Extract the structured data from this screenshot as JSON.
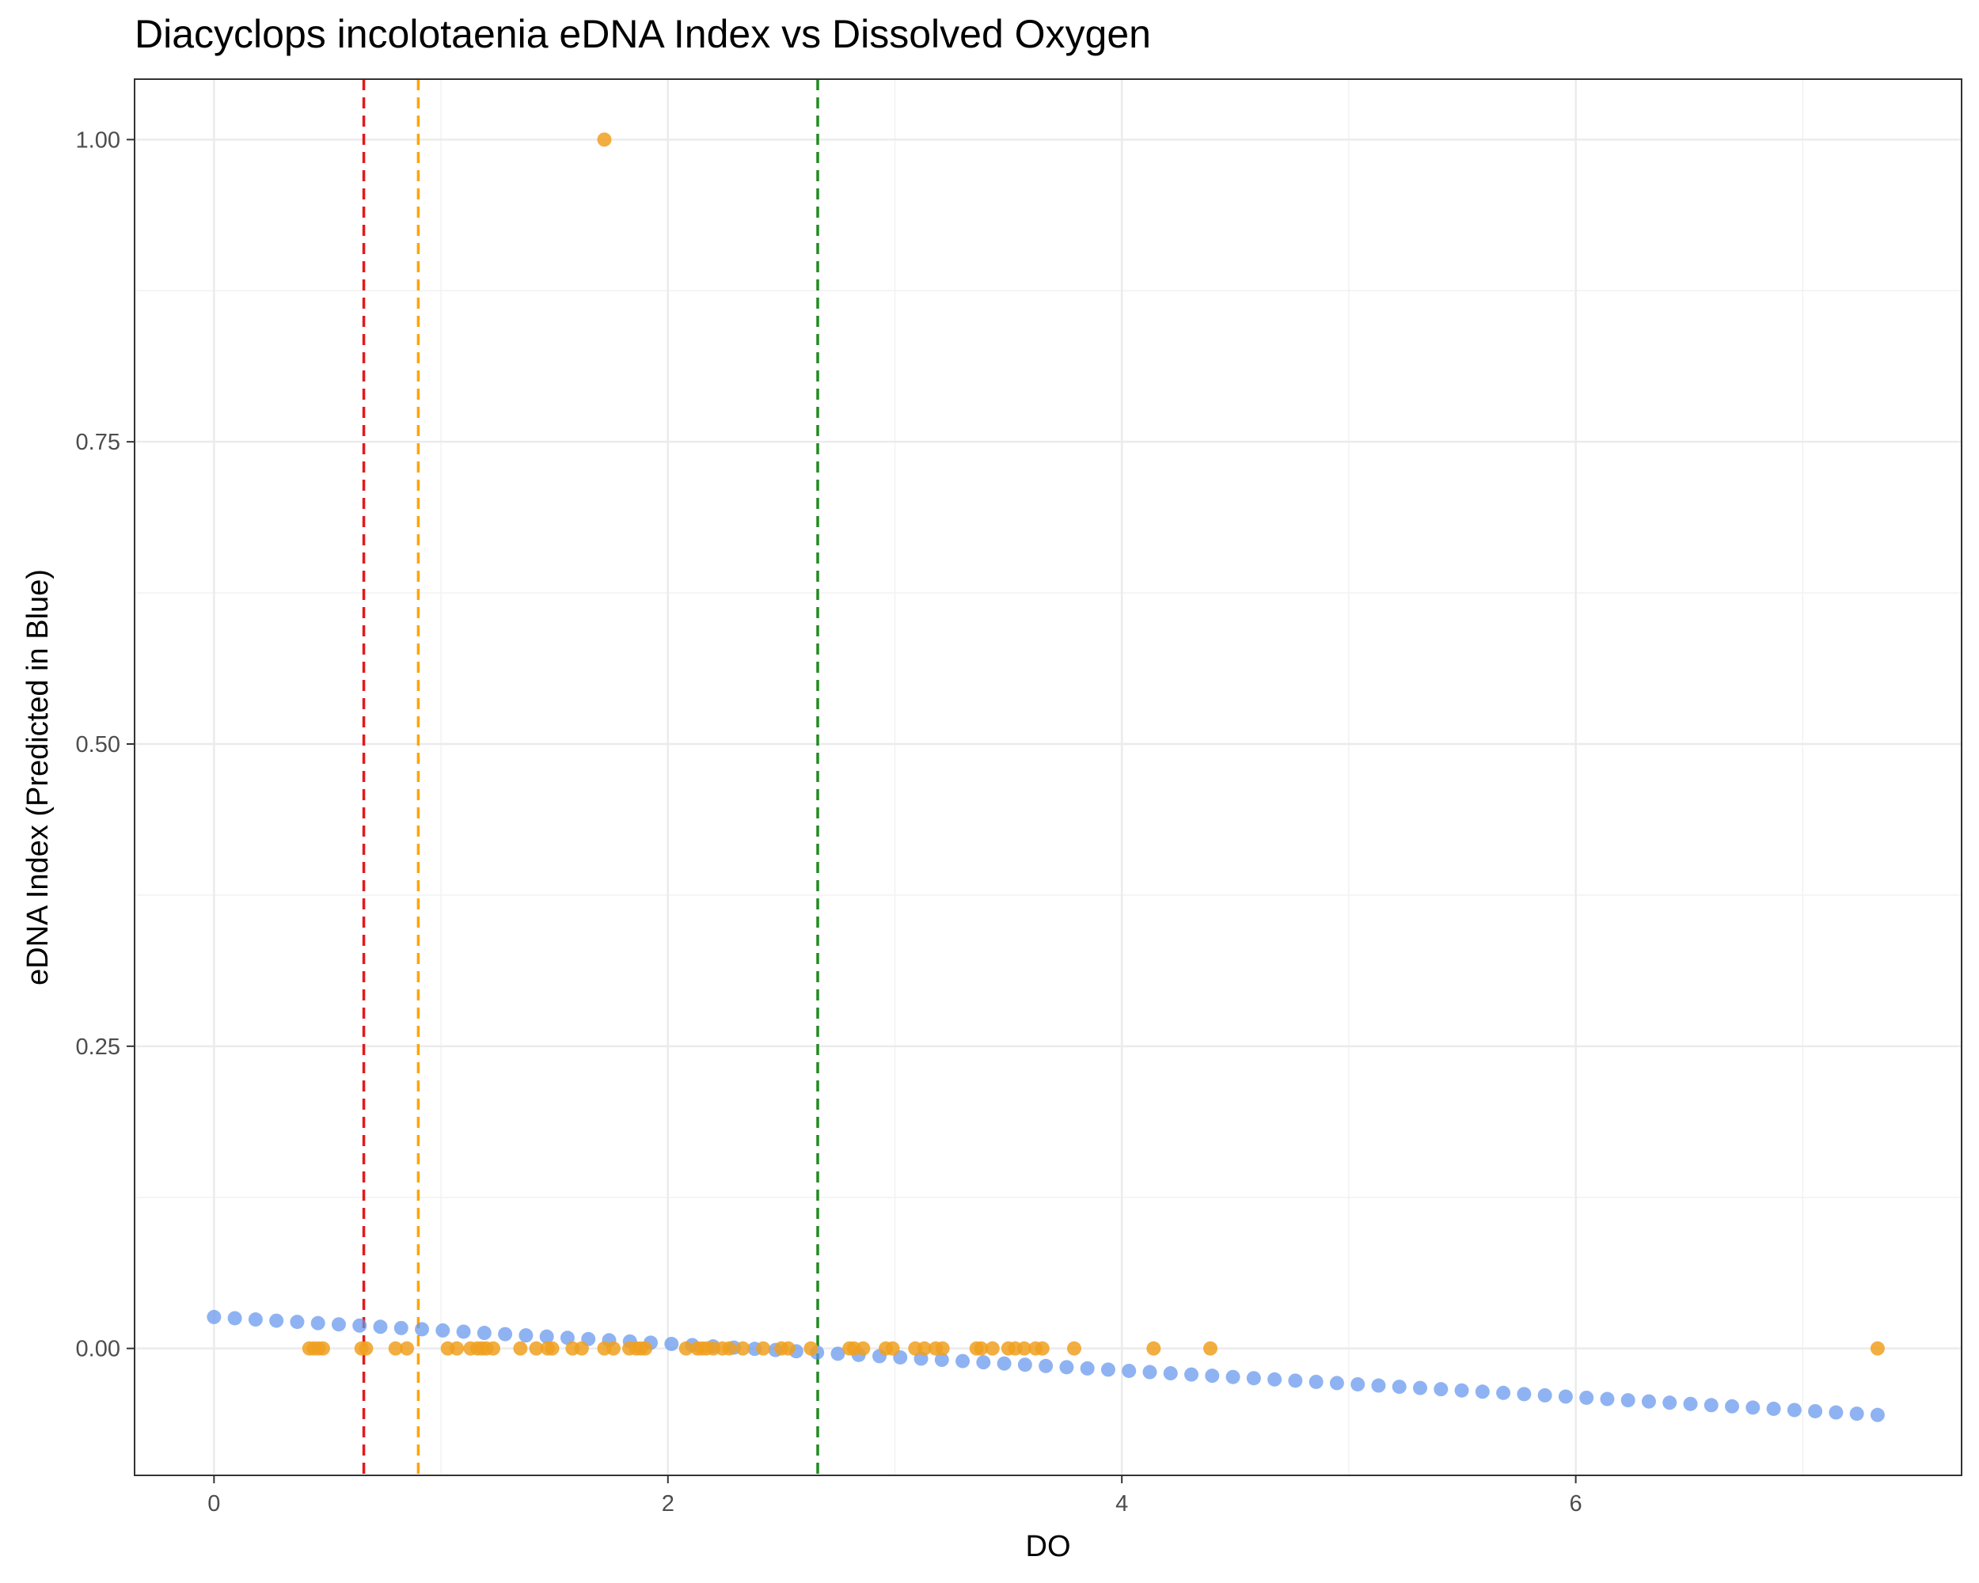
{
  "chart_data": {
    "type": "scatter",
    "title": "Diacyclops incolotaenia eDNA Index vs Dissolved Oxygen",
    "xlabel": "DO",
    "ylabel": "eDNA Index (Predicted in Blue)",
    "xlim": [
      -0.35,
      7.7
    ],
    "ylim": [
      -0.105,
      1.05
    ],
    "x_ticks": [
      0,
      2,
      4,
      6
    ],
    "x_tick_labels": [
      "0",
      "2",
      "4",
      "6"
    ],
    "y_ticks": [
      0.0,
      0.25,
      0.5,
      0.75,
      1.0
    ],
    "y_tick_labels": [
      "0.00",
      "0.25",
      "0.50",
      "0.75",
      "1.00"
    ],
    "grid": true,
    "colors": {
      "predicted": "#6495ED",
      "observed": "#F0A020",
      "red_line": "#E41A1C",
      "orange_line": "#FFA500",
      "green_line": "#228B22"
    },
    "vlines": [
      {
        "x": 0.66,
        "color": "#E41A1C",
        "style": "dashed"
      },
      {
        "x": 0.9,
        "color": "#FFA500",
        "style": "dashed"
      },
      {
        "x": 2.66,
        "color": "#228B22",
        "style": "dashed"
      }
    ],
    "series": [
      {
        "role": "predicted",
        "x_start": 0.0,
        "x_end": 7.33,
        "n": 81,
        "y_start": 0.026,
        "y_end": -0.055
      },
      {
        "role": "observed",
        "x": [
          0.42,
          0.44,
          0.46,
          0.48,
          0.65,
          0.67,
          0.8,
          0.85,
          1.03,
          1.07,
          1.13,
          1.16,
          1.18,
          1.2,
          1.23,
          1.35,
          1.42,
          1.47,
          1.49,
          1.58,
          1.62,
          1.72,
          1.76,
          1.83,
          1.86,
          1.88,
          1.9,
          2.08,
          2.13,
          2.15,
          2.17,
          2.2,
          2.24,
          2.27,
          2.33,
          2.42,
          2.5,
          2.53,
          2.63,
          2.8,
          2.82,
          2.86,
          2.96,
          2.99,
          3.09,
          3.13,
          3.18,
          3.21,
          3.36,
          3.38,
          3.43,
          3.5,
          3.53,
          3.57,
          3.62,
          3.65,
          3.79,
          4.14,
          4.39,
          7.33,
          1.72
        ],
        "y": [
          0,
          0,
          0,
          0,
          0,
          0,
          0,
          0,
          0,
          0,
          0,
          0,
          0,
          0,
          0,
          0,
          0,
          0,
          0,
          0,
          0,
          0,
          0,
          0,
          0,
          0,
          0,
          0,
          0,
          0,
          0,
          0,
          0,
          0,
          0,
          0,
          0,
          0,
          0,
          0,
          0,
          0,
          0,
          0,
          0,
          0,
          0,
          0,
          0,
          0,
          0,
          0,
          0,
          0,
          0,
          0,
          0,
          0,
          0,
          0,
          1.0
        ]
      }
    ]
  }
}
